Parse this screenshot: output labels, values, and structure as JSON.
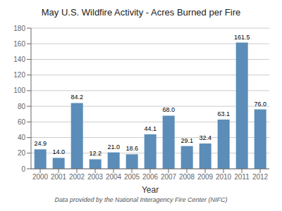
{
  "chart_data": {
    "type": "bar",
    "title": "May U.S. Wildfire Activity - Acres Burned per Fire",
    "xlabel": "Year",
    "categories": [
      "2000",
      "2001",
      "2002",
      "2003",
      "2004",
      "2005",
      "2006",
      "2007",
      "2008",
      "2009",
      "2010",
      "2011",
      "2012"
    ],
    "values": [
      24.9,
      14.0,
      84.2,
      12.2,
      21.0,
      18.6,
      44.1,
      68.0,
      29.1,
      32.4,
      63.1,
      161.5,
      76.0
    ],
    "value_labels": [
      "24.9",
      "14.0",
      "84.2",
      "12.2",
      "21.0",
      "18.6",
      "44.1",
      "68.0",
      "29.1",
      "32.4",
      "63.1",
      "161.5",
      "76.0"
    ],
    "data_labels": true,
    "color": "#5b8db8",
    "ylim": [
      0,
      180
    ],
    "yticks": [
      0,
      20,
      40,
      60,
      80,
      100,
      120,
      140,
      160,
      180
    ],
    "grid": true,
    "annotations": [
      "Data provided by the National Interagency Fire Center (NIFC)"
    ]
  }
}
